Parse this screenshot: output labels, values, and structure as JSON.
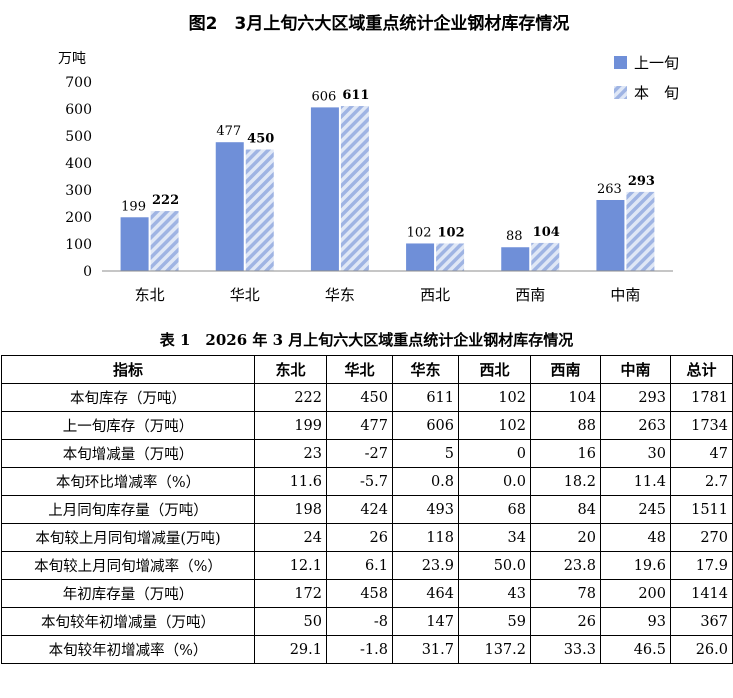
{
  "chart_data": {
    "type": "bar",
    "title": "图2　3月上旬六大区域重点统计企业钢材库存情况",
    "ylabel": "万吨",
    "xlabel": "",
    "ylim": [
      0,
      700
    ],
    "yticks": [
      0,
      100,
      200,
      300,
      400,
      500,
      600,
      700
    ],
    "categories": [
      "东北",
      "华北",
      "华东",
      "西北",
      "西南",
      "中南"
    ],
    "series": [
      {
        "name": "上一旬",
        "values": [
          199,
          477,
          606,
          102,
          88,
          263
        ],
        "color": "#6f8fd8",
        "pattern": "solid"
      },
      {
        "name": "本　旬",
        "values": [
          222,
          450,
          611,
          102,
          104,
          293
        ],
        "color": "#b3c3e8",
        "pattern": "hatched"
      }
    ],
    "legend": "top-right",
    "grid": false
  },
  "table": {
    "title": "表 1　2026 年 3 月上旬六大区域重点统计企业钢材库存情况",
    "headers": [
      "指标",
      "东北",
      "华北",
      "华东",
      "西北",
      "西南",
      "中南",
      "总计"
    ],
    "rows": [
      {
        "label": "本旬库存（万吨）",
        "values": [
          "222",
          "450",
          "611",
          "102",
          "104",
          "293",
          "1781"
        ]
      },
      {
        "label": "上一旬库存（万吨）",
        "values": [
          "199",
          "477",
          "606",
          "102",
          "88",
          "263",
          "1734"
        ]
      },
      {
        "label": "本旬增减量（万吨）",
        "values": [
          "23",
          "-27",
          "5",
          "0",
          "16",
          "30",
          "47"
        ]
      },
      {
        "label": "本旬环比增减率（%）",
        "values": [
          "11.6",
          "-5.7",
          "0.8",
          "0.0",
          "18.2",
          "11.4",
          "2.7"
        ]
      },
      {
        "label": "上月同旬库存量（万吨）",
        "values": [
          "198",
          "424",
          "493",
          "68",
          "84",
          "245",
          "1511"
        ]
      },
      {
        "label": "本旬较上月同旬增减量(万吨)",
        "values": [
          "24",
          "26",
          "118",
          "34",
          "20",
          "48",
          "270"
        ]
      },
      {
        "label": "本旬较上月同旬增减率（%）",
        "values": [
          "12.1",
          "6.1",
          "23.9",
          "50.0",
          "23.8",
          "19.6",
          "17.9"
        ]
      },
      {
        "label": "年初库存量（万吨）",
        "values": [
          "172",
          "458",
          "464",
          "43",
          "78",
          "200",
          "1414"
        ]
      },
      {
        "label": "本旬较年初增减量（万吨）",
        "values": [
          "50",
          "-8",
          "147",
          "59",
          "26",
          "93",
          "367"
        ]
      },
      {
        "label": "本旬较年初增减率（%）",
        "values": [
          "29.1",
          "-1.8",
          "31.7",
          "137.2",
          "33.3",
          "46.5",
          "26.0"
        ]
      }
    ]
  }
}
